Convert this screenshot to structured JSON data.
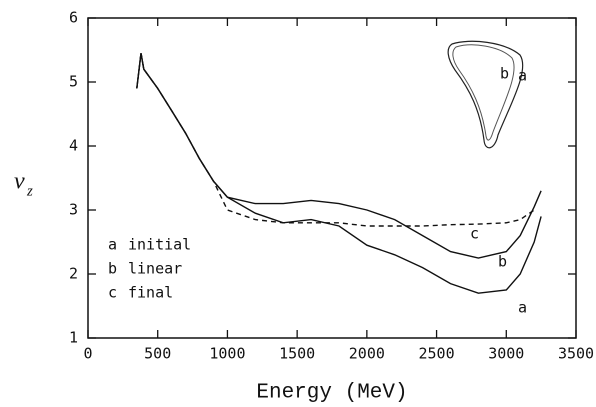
{
  "chart_data": {
    "type": "line",
    "x_label": "Energy (MeV)",
    "y_label": "ν",
    "y_label_subscript": "z",
    "x": [
      350,
      380,
      400,
      500,
      600,
      700,
      800,
      900,
      1000,
      1200,
      1400,
      1600,
      1800,
      2000,
      2200,
      2400,
      2600,
      2800,
      3000,
      3100,
      3200,
      3250
    ],
    "series": [
      {
        "name": "initial",
        "label": "a",
        "color": "#111111",
        "dash": false,
        "values": [
          4.9,
          5.45,
          5.2,
          4.9,
          4.55,
          4.2,
          3.8,
          3.45,
          3.2,
          2.95,
          2.8,
          2.85,
          2.75,
          2.45,
          2.3,
          2.1,
          1.85,
          1.7,
          1.75,
          2.0,
          2.5,
          2.9
        ]
      },
      {
        "name": "linear",
        "label": "b",
        "color": "#111111",
        "dash": false,
        "values": [
          4.9,
          5.45,
          5.2,
          4.9,
          4.55,
          4.2,
          3.8,
          3.45,
          3.2,
          3.1,
          3.1,
          3.15,
          3.1,
          3.0,
          2.85,
          2.6,
          2.35,
          2.25,
          2.35,
          2.6,
          3.05,
          3.3
        ]
      },
      {
        "name": "final",
        "label": "c",
        "color": "#111111",
        "dash": true,
        "values": [
          4.9,
          5.45,
          5.2,
          4.9,
          4.55,
          4.2,
          3.8,
          3.45,
          3.0,
          2.85,
          2.8,
          2.8,
          2.8,
          2.75,
          2.75,
          2.75,
          2.77,
          2.78,
          2.8,
          2.85,
          3.0,
          null
        ]
      }
    ],
    "xlim": [
      0,
      3500
    ],
    "xticks": [
      0,
      500,
      1000,
      1500,
      2000,
      2500,
      3000,
      3500
    ],
    "ylim": [
      1,
      6
    ],
    "yticks": [
      1,
      2,
      3,
      4,
      5,
      6
    ]
  }
}
